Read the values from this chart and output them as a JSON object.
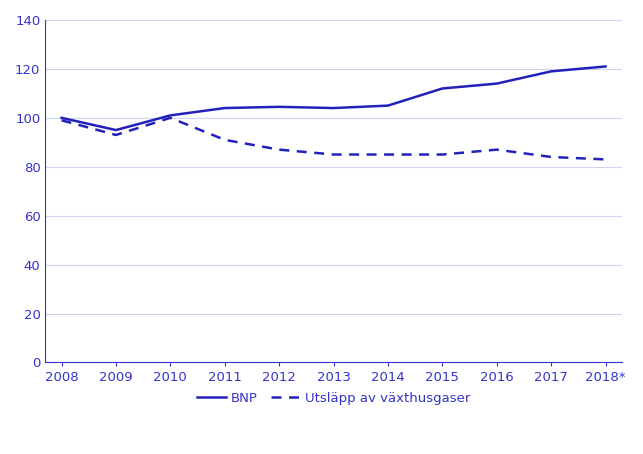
{
  "years": [
    2008,
    2009,
    2010,
    2011,
    2012,
    2013,
    2014,
    2015,
    2016,
    2017,
    2018
  ],
  "bnp": [
    100,
    95,
    101,
    104,
    104.5,
    104,
    105,
    112,
    114,
    119,
    121
  ],
  "utslapp": [
    99,
    93,
    100,
    91,
    87,
    85,
    85,
    85,
    87,
    84,
    83
  ],
  "year_labels": [
    "2008",
    "2009",
    "2010",
    "2011",
    "2012",
    "2013",
    "2014",
    "2015",
    "2016",
    "2017",
    "2018*"
  ],
  "line_color": "#2222bb",
  "tick_color": "#3333cc",
  "spine_color": "#3333cc",
  "ylim": [
    0,
    140
  ],
  "yticks": [
    0,
    20,
    40,
    60,
    80,
    100,
    120,
    140
  ],
  "legend_bnp": "BNP",
  "legend_utslapp": "Utsläpp av växthusgaser",
  "background_color": "#ffffff",
  "grid_color": "#d0d4ee",
  "linewidth": 1.8,
  "fontsize": 9.5
}
